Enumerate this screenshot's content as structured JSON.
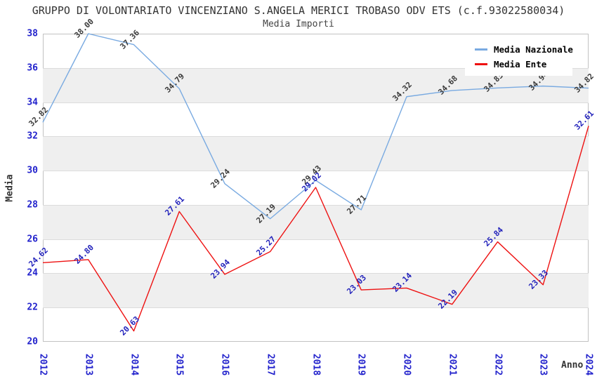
{
  "title": "GRUPPO DI VOLONTARIATO VINCENZIANO S.ANGELA MERICI TROBASO ODV ETS (c.f.93022580034)",
  "subtitle": "Media Importi",
  "chart_data": {
    "type": "line",
    "x": [
      "2012",
      "2013",
      "2014",
      "2015",
      "2016",
      "2017",
      "2018",
      "2019",
      "2020",
      "2021",
      "2022",
      "2023",
      "2024"
    ],
    "series": [
      {
        "name": "Media Nazionale",
        "color": "#79aae1",
        "label_color": "#3a3a3a",
        "values": [
          32.82,
          38.0,
          37.36,
          34.79,
          29.24,
          27.19,
          29.43,
          27.71,
          34.32,
          34.68,
          34.83,
          34.94,
          34.82
        ]
      },
      {
        "name": "Media Ente",
        "color": "#ee1111",
        "label_color": "#2222bb",
        "values": [
          24.62,
          24.8,
          20.63,
          27.61,
          23.94,
          25.27,
          29.02,
          23.03,
          23.14,
          22.19,
          25.84,
          23.33,
          32.61
        ]
      }
    ],
    "xlabel": "Anno",
    "ylabel": "Media",
    "ylim": [
      20,
      38
    ],
    "ytick_step": 2,
    "grid": "banded-horizontal",
    "band_color": "#efefef",
    "tick_label_color": "#2222cc",
    "legend_position": "top-right",
    "value_labels": "above-points, rotated 45deg, 2 decimals"
  }
}
